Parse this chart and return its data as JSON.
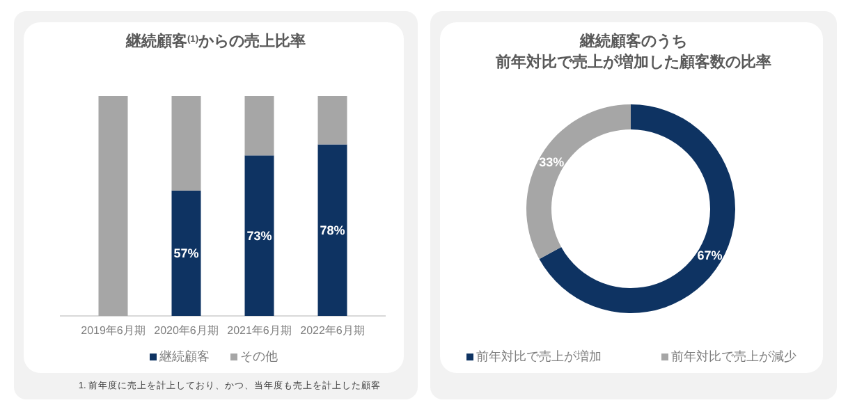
{
  "chart_data": [
    {
      "type": "bar",
      "title": "継続顧客$^{(1)}$からの売上比率",
      "categories": [
        "2019年6月期",
        "2020年6月期",
        "2021年6月期",
        "2022年6月期"
      ],
      "stacked": true,
      "ylim": [
        0,
        100
      ],
      "tick_labels": "x",
      "legend": "bottom",
      "series": [
        {
          "name": "継続顧客",
          "color": "#0e3362",
          "values": [
            0,
            57,
            73,
            78
          ],
          "value_labels": [
            null,
            "57%",
            "73%",
            "78%"
          ]
        },
        {
          "name": "その他",
          "color": "#a6a6a6",
          "values": [
            100,
            43,
            27,
            22
          ]
        }
      ],
      "annotations": [
        "1. 前年度に売上を計上しており、かつ、当年度も売上を計上した顧客"
      ]
    },
    {
      "type": "donut",
      "title": "継続顧客のうち",
      "subtitle": "前年対比で売上が増加した顧客数の比率",
      "categories": [
        "前年対比で売上が増加",
        "前年対比で売上が減少"
      ],
      "values": [
        67,
        33
      ],
      "colors": [
        "#0e3362",
        "#a6a6a6"
      ],
      "value_labels": [
        "67%",
        "33%"
      ],
      "legend": "bottom"
    }
  ]
}
